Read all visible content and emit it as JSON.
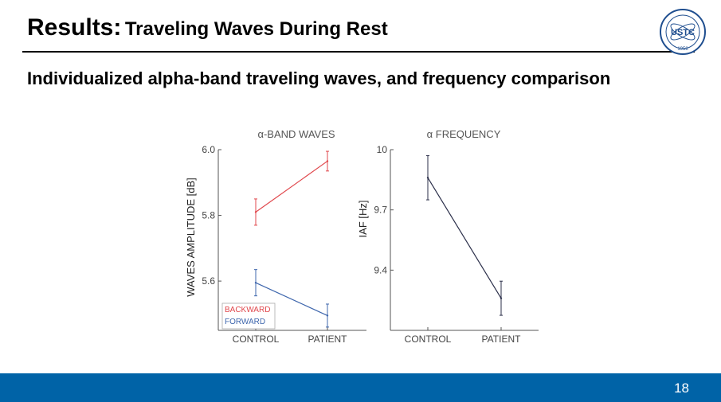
{
  "header": {
    "title": "Results:",
    "subtitle": "Traveling Waves During Rest"
  },
  "section_title": "Individualized alpha-band traveling waves, and frequency comparison",
  "logo": {
    "text": "USTC",
    "year": "1958"
  },
  "footer": {
    "page_number": "18",
    "color": "#0063A7"
  },
  "chart_data": [
    {
      "type": "line",
      "title": "α-BAND WAVES",
      "ylabel": "WAVES AMPLITUDE [dB]",
      "xlabel": "",
      "categories": [
        "CONTROL",
        "PATIENT"
      ],
      "ylim": [
        5.45,
        6.0
      ],
      "yticks": [
        5.6,
        5.8,
        6.0
      ],
      "ytick_labels": [
        "5.6",
        "5.8",
        "6.0"
      ],
      "legend_position": "bottom-left",
      "series": [
        {
          "name": "BACKWARD",
          "color": "#E0474C",
          "values": [
            5.81,
            5.965
          ],
          "errors": [
            0.04,
            0.03
          ]
        },
        {
          "name": "FORWARD",
          "color": "#3F67AD",
          "values": [
            5.595,
            5.495
          ],
          "errors": [
            0.04,
            0.035
          ]
        }
      ]
    },
    {
      "type": "line",
      "title": "α FREQUENCY",
      "ylabel": "IAF [Hz]",
      "xlabel": "",
      "categories": [
        "CONTROL",
        "PATIENT"
      ],
      "ylim": [
        9.1,
        10.0
      ],
      "yticks": [
        9.4,
        9.7,
        10.0
      ],
      "ytick_labels": [
        "9.4",
        "9.7",
        "10"
      ],
      "series": [
        {
          "color": "#2B2F4A",
          "values": [
            9.86,
            9.26
          ],
          "errors": [
            0.11,
            0.085
          ]
        }
      ]
    }
  ]
}
